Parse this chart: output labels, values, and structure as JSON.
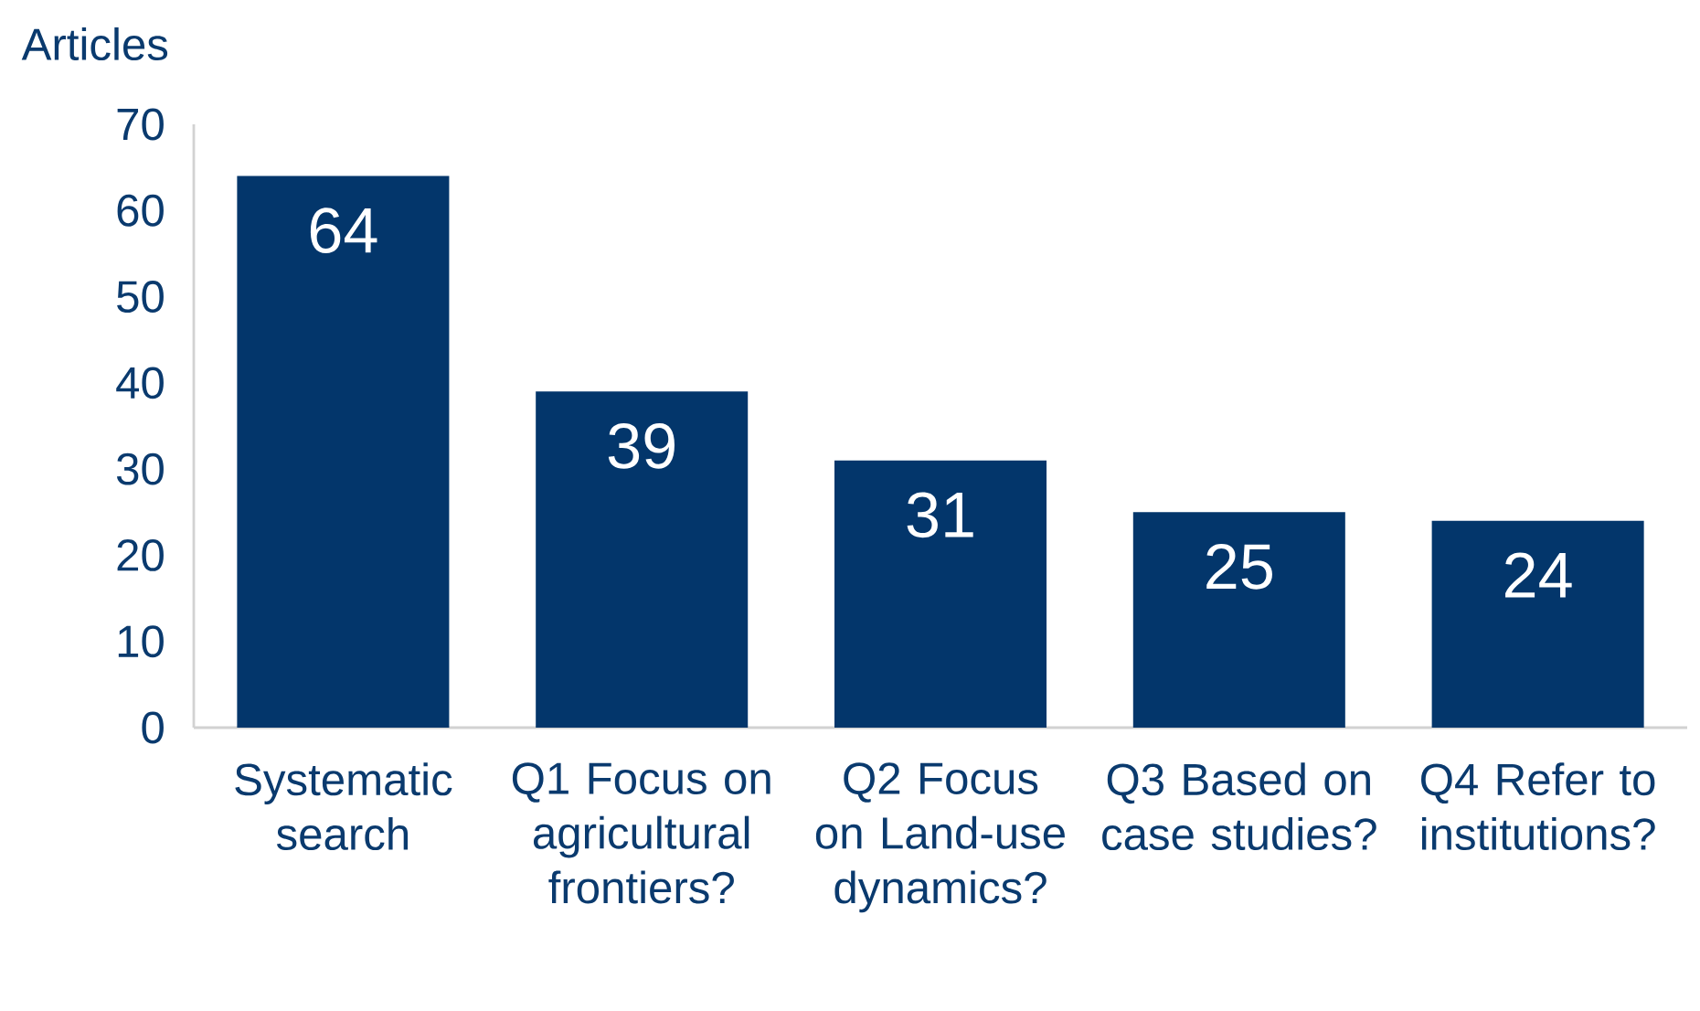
{
  "chart_data": {
    "type": "bar",
    "ylabel": "Articles",
    "categories": [
      "Systematic search",
      "Q1 Focus on agricultural frontiers?",
      "Q2 Focus on Land-use dynamics?",
      "Q3 Based on case studies?",
      "Q4 Refer to institutions?"
    ],
    "values": [
      64,
      39,
      31,
      25,
      24
    ],
    "color": "#03366b",
    "ylim": [
      0,
      70
    ],
    "yticks": [
      0,
      10,
      20,
      30,
      40,
      50,
      60,
      70
    ],
    "grid": false,
    "data_labels": true
  }
}
